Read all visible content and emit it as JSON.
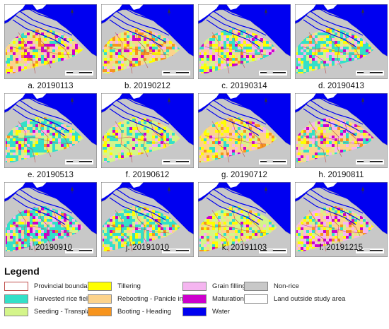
{
  "panels": [
    {
      "caption": "a. 20190113",
      "mix": {
        "harvested": 0.1,
        "seeding": 0.1,
        "tillering": 0.12,
        "rebooting": 0.38,
        "booting": 0.05,
        "grain": 0.08,
        "maturation": 0.14
      }
    },
    {
      "caption": "b. 20190212",
      "mix": {
        "harvested": 0.05,
        "seeding": 0.15,
        "tillering": 0.1,
        "rebooting": 0.35,
        "booting": 0.2,
        "grain": 0.08,
        "maturation": 0.07
      }
    },
    {
      "caption": "c. 20190314",
      "mix": {
        "harvested": 0.2,
        "seeding": 0.12,
        "tillering": 0.15,
        "rebooting": 0.2,
        "booting": 0.03,
        "grain": 0.2,
        "maturation": 0.1
      }
    },
    {
      "caption": "d. 20190413",
      "mix": {
        "harvested": 0.42,
        "seeding": 0.12,
        "tillering": 0.1,
        "rebooting": 0.12,
        "booting": 0.02,
        "grain": 0.14,
        "maturation": 0.08
      }
    },
    {
      "caption": "e. 20190513",
      "mix": {
        "harvested": 0.4,
        "seeding": 0.22,
        "tillering": 0.08,
        "rebooting": 0.1,
        "booting": 0.02,
        "grain": 0.1,
        "maturation": 0.08
      }
    },
    {
      "caption": "f. 20190612",
      "mix": {
        "harvested": 0.2,
        "seeding": 0.42,
        "tillering": 0.15,
        "rebooting": 0.1,
        "booting": 0.02,
        "grain": 0.07,
        "maturation": 0.04
      }
    },
    {
      "caption": "g. 20190712",
      "mix": {
        "harvested": 0.05,
        "seeding": 0.12,
        "tillering": 0.15,
        "rebooting": 0.45,
        "booting": 0.1,
        "grain": 0.08,
        "maturation": 0.05
      }
    },
    {
      "caption": "h. 20190811",
      "mix": {
        "harvested": 0.12,
        "seeding": 0.1,
        "tillering": 0.1,
        "rebooting": 0.35,
        "booting": 0.05,
        "grain": 0.18,
        "maturation": 0.1
      }
    },
    {
      "caption": "i. 20190910",
      "mix": {
        "harvested": 0.38,
        "seeding": 0.12,
        "tillering": 0.08,
        "rebooting": 0.1,
        "booting": 0.02,
        "grain": 0.15,
        "maturation": 0.15
      }
    },
    {
      "caption": "j. 20191010",
      "mix": {
        "harvested": 0.4,
        "seeding": 0.2,
        "tillering": 0.15,
        "rebooting": 0.1,
        "booting": 0.02,
        "grain": 0.08,
        "maturation": 0.05
      }
    },
    {
      "caption": "k. 20191103",
      "mix": {
        "harvested": 0.15,
        "seeding": 0.35,
        "tillering": 0.15,
        "rebooting": 0.2,
        "booting": 0.05,
        "grain": 0.07,
        "maturation": 0.03
      }
    },
    {
      "caption": "l. 20191215",
      "mix": {
        "harvested": 0.08,
        "seeding": 0.15,
        "tillering": 0.12,
        "rebooting": 0.25,
        "booting": 0.05,
        "grain": 0.25,
        "maturation": 0.1
      }
    }
  ],
  "legend": {
    "title": "Legend",
    "items": [
      {
        "key": "provincial",
        "label": "Provincial boundaries",
        "color": "#ffffff",
        "border": "#c0504d"
      },
      {
        "key": "harvested",
        "label": "Harvested rice field",
        "color": "#33e0c8",
        "border": "#888888"
      },
      {
        "key": "seeding",
        "label": "Seeding - Transplanting",
        "color": "#d4f58a",
        "border": "#888888"
      },
      {
        "key": "tillering",
        "label": "Tillering",
        "color": "#ffff00",
        "border": "#888888"
      },
      {
        "key": "rebooting",
        "label": "Rebooting - Panicle initiation",
        "color": "#fcd38c",
        "border": "#888888"
      },
      {
        "key": "booting",
        "label": "Booting - Heading",
        "color": "#f7941d",
        "border": "#888888"
      },
      {
        "key": "grain",
        "label": "Grain filling",
        "color": "#f5b5f0",
        "border": "#888888"
      },
      {
        "key": "maturation",
        "label": "Maturation",
        "color": "#cc00cc",
        "border": "#888888"
      },
      {
        "key": "water",
        "label": "Water",
        "color": "#0000f0",
        "border": "#888888"
      },
      {
        "key": "nonrice",
        "label": "Non-rice",
        "color": "#c8c8c8",
        "border": "#888888"
      },
      {
        "key": "outside",
        "label": "Land outside study area",
        "color": "#ffffff",
        "border": "#888888"
      }
    ]
  }
}
